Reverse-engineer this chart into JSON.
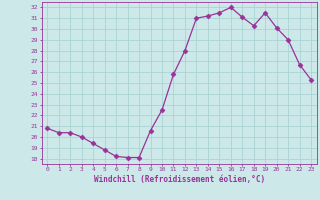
{
  "x": [
    0,
    1,
    2,
    3,
    4,
    5,
    6,
    7,
    8,
    9,
    10,
    11,
    12,
    13,
    14,
    15,
    16,
    17,
    18,
    19,
    20,
    21,
    22,
    23
  ],
  "y": [
    20.8,
    20.4,
    20.4,
    20.0,
    19.4,
    18.8,
    18.2,
    18.1,
    18.1,
    20.6,
    22.5,
    25.8,
    28.0,
    31.0,
    31.2,
    31.5,
    32.0,
    31.1,
    30.3,
    31.5,
    30.1,
    29.0,
    26.7,
    25.3
  ],
  "line_color": "#993399",
  "marker": "D",
  "marker_size": 2.5,
  "bg_color": "#cce8e8",
  "grid_color": "#aad4d4",
  "xlabel": "Windchill (Refroidissement éolien,°C)",
  "xlim": [
    -0.5,
    23.5
  ],
  "ylim": [
    17.5,
    32.5
  ],
  "yticks": [
    18,
    19,
    20,
    21,
    22,
    23,
    24,
    25,
    26,
    27,
    28,
    29,
    30,
    31,
    32
  ],
  "xticks": [
    0,
    1,
    2,
    3,
    4,
    5,
    6,
    7,
    8,
    9,
    10,
    11,
    12,
    13,
    14,
    15,
    16,
    17,
    18,
    19,
    20,
    21,
    22,
    23
  ],
  "tick_label_color": "#993399",
  "label_color": "#993399",
  "axis_color": "#993399",
  "font_family": "monospace"
}
